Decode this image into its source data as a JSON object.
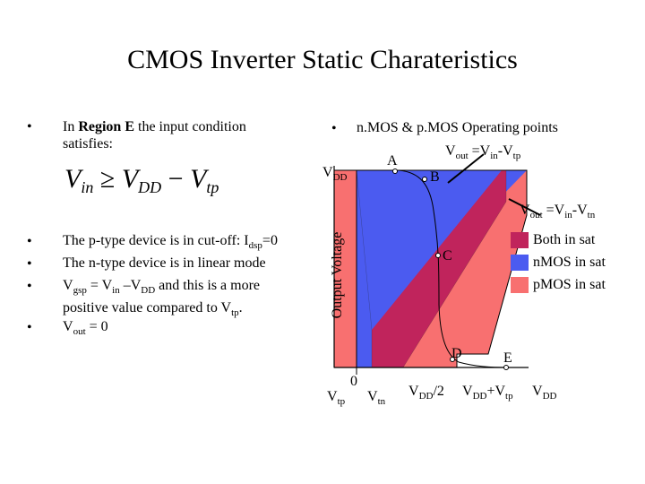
{
  "title": "CMOS Inverter Static Charateristics",
  "left": {
    "intro_prefix": "In ",
    "intro_bold": "Region E",
    "intro_line1_rest": " the input condition",
    "intro_line2": "satisfies:",
    "formula": {
      "vin_v": "V",
      "vin_sub": "in",
      "geq": " ≥ ",
      "vdd_v": "V",
      "vdd_sub": "DD",
      "minus": " − ",
      "vtp_v": "V",
      "vtp_sub": "tp"
    },
    "b1": {
      "a": "The p-type device is in cut-off: I",
      "sub": "dsp",
      "b": "=0"
    },
    "b2": "The n-type device is in linear mode",
    "b3": {
      "a": "V",
      "s1": "gsp",
      "b": " = V",
      "s2": "in",
      "c": " –V",
      "s3": "DD",
      "d": " and this is a more",
      "line2_a": "positive value compared to V",
      "line2_sub": "tp",
      "line2_b": "."
    },
    "b4": {
      "a": "V",
      "sub": "out",
      "b": " = 0"
    },
    "bullet_char": "•"
  },
  "right": {
    "header": "n.MOS & p.MOS Operating points",
    "bullet_char": "•",
    "vout1": {
      "a": "V",
      "sub": "out",
      "b": " =V",
      "sub2": "in",
      "c": "-V",
      "sub3": "tp"
    },
    "vout2": {
      "a": "V",
      "sub": "out",
      "b": " =V",
      "sub2": "in",
      "c": "-V",
      "sub3": "tn"
    },
    "vdd_label": {
      "a": "V",
      "sub": "DD"
    },
    "ylabel": "Output Voltage",
    "points": {
      "A": "A",
      "B": "B",
      "C": "C",
      "D": "D",
      "E": "E"
    },
    "x_ticks": {
      "zero": "0",
      "vtp": {
        "a": "V",
        "sub": "tp"
      },
      "vtn": {
        "a": "V",
        "sub": "tn"
      },
      "vdd2": {
        "a": "V",
        "sub": "DD",
        "b": "/2"
      },
      "vddvtp": {
        "a": "V",
        "sub": "DD",
        "b": "+V",
        "sub2": "tp"
      },
      "vdd": {
        "a": "V",
        "sub": "DD"
      }
    },
    "legend": [
      {
        "label": "Both in sat",
        "color": "#C0245C"
      },
      {
        "label": "nMOS in sat",
        "color": "#4B5BF0"
      },
      {
        "label": "pMOS in sat",
        "color": "#F87070"
      }
    ]
  },
  "colors": {
    "both": "#C0245C",
    "nmos": "#4B5BF0",
    "pmos": "#F87070"
  }
}
